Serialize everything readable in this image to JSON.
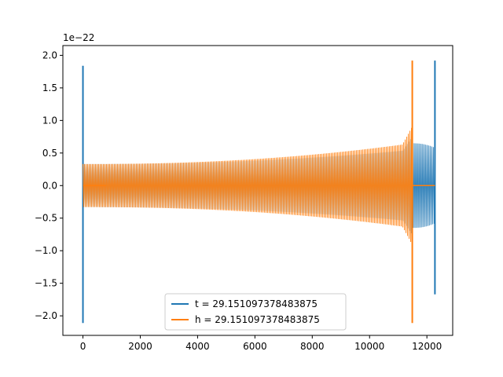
{
  "chart_data": {
    "type": "line",
    "title": "",
    "xlabel": "",
    "ylabel": "",
    "offset_text": "1e−22",
    "xlim": [
      -700,
      12900
    ],
    "ylim": [
      -2.3,
      2.15
    ],
    "x_ticks": [
      0,
      2000,
      4000,
      6000,
      8000,
      10000,
      12000
    ],
    "x_tick_labels": [
      "0",
      "2000",
      "4000",
      "6000",
      "8000",
      "10000",
      "12000"
    ],
    "y_ticks": [
      2.0,
      1.5,
      1.0,
      0.5,
      0.0,
      -0.5,
      -1.0,
      -1.5,
      -2.0
    ],
    "y_tick_labels": [
      "2.0",
      "1.5",
      "1.0",
      "0.5",
      "0.0",
      "−0.5",
      "−1.0",
      "−1.5",
      "−2.0"
    ],
    "grid": false,
    "legend_position": "lower center",
    "series": [
      {
        "name": "t = 29.151097378483875",
        "color": "#1f77b4",
        "segments": [
          {
            "kind": "spike",
            "x": 0,
            "max": 1.84,
            "min": -2.11
          },
          {
            "kind": "chirp",
            "x_start": 0,
            "x_end": 11500,
            "amp_start": 0.33,
            "amp_end": 0.55,
            "fill": 0.65
          },
          {
            "kind": "packet",
            "x_start": 11500,
            "x_end": 12280,
            "amp_start": 0.65,
            "amp_end": 0.58,
            "fill": 0.9
          },
          {
            "kind": "spike",
            "x": 12280,
            "max": 1.92,
            "min": -1.67
          }
        ]
      },
      {
        "name": "h = 29.151097378483875",
        "color": "#ff7f0e",
        "segments": [
          {
            "kind": "chirp",
            "x_start": 0,
            "x_end": 11490,
            "amp_start": 0.33,
            "amp_end": 0.65,
            "fill": 0.92
          },
          {
            "kind": "flat",
            "x_start": 0,
            "x_end": 800,
            "y": 0.0
          },
          {
            "kind": "flat",
            "x_start": 11490,
            "x_end": 12280,
            "y": 0.0
          },
          {
            "kind": "spike",
            "x": 11490,
            "max": 1.92,
            "min": -2.11
          }
        ]
      }
    ]
  }
}
